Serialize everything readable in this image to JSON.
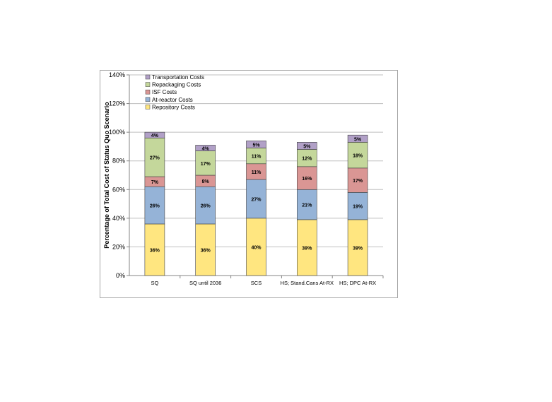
{
  "chart_data": {
    "type": "bar",
    "stacked": true,
    "title": "",
    "xlabel": "",
    "ylabel": "Percentage of Total Cost of Status Quo Scenario",
    "ylim": [
      0,
      140
    ],
    "yticks": [
      "0%",
      "20%",
      "40%",
      "60%",
      "80%",
      "100%",
      "120%",
      "140%"
    ],
    "ytick_values": [
      0,
      20,
      40,
      60,
      80,
      100,
      120,
      140
    ],
    "grid": true,
    "legend_position": "top-left",
    "categories": [
      "SQ",
      "SQ until 2036",
      "SCS",
      "HS; Stand.Cans At-RX",
      "HS; DPC At-RX"
    ],
    "series": [
      {
        "name": "Repository Costs",
        "color": "#ffe680",
        "values": [
          36,
          36,
          40,
          39,
          39
        ],
        "labels": [
          "36%",
          "36%",
          "40%",
          "39%",
          "39%"
        ]
      },
      {
        "name": "At-reactor Costs",
        "color": "#95b3d7",
        "values": [
          26,
          26,
          27,
          21,
          19
        ],
        "labels": [
          "26%",
          "26%",
          "27%",
          "21%",
          "19%"
        ]
      },
      {
        "name": "ISF Costs",
        "color": "#da9694",
        "values": [
          7,
          8,
          11,
          16,
          17
        ],
        "labels": [
          "7%",
          "8%",
          "11%",
          "16%",
          "17%"
        ]
      },
      {
        "name": "Repackaging Costs",
        "color": "#c4d79b",
        "values": [
          27,
          17,
          11,
          12,
          18
        ],
        "labels": [
          "27%",
          "17%",
          "11%",
          "12%",
          "18%"
        ]
      },
      {
        "name": "Transportation Costs",
        "color": "#b1a0c7",
        "values": [
          4,
          4,
          5,
          5,
          5
        ],
        "labels": [
          "4%",
          "4%",
          "5%",
          "5%",
          "5%"
        ]
      }
    ],
    "legend_order": [
      "Transportation Costs",
      "Repackaging Costs",
      "ISF Costs",
      "At-reactor Costs",
      "Repository Costs"
    ]
  }
}
